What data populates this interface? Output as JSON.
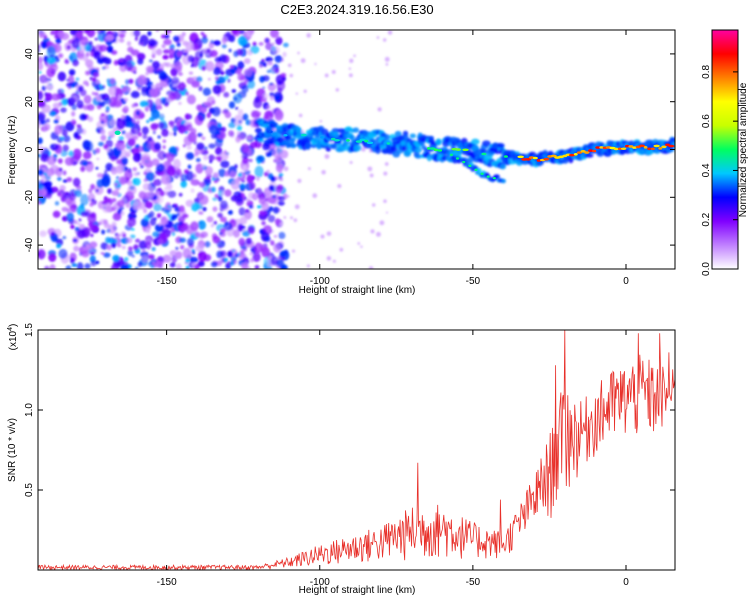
{
  "title": "C2E3.2024.319.16.56.E30",
  "chart_data": [
    {
      "type": "heatmap",
      "xlabel": "Height of straight line (km)",
      "ylabel": "Frequency (Hz)",
      "xlim": [
        -192,
        16
      ],
      "ylim": [
        -50,
        50
      ],
      "x_ticks": [
        -150,
        -100,
        -50,
        0
      ],
      "y_ticks": [
        -40,
        -20,
        0,
        20,
        40
      ],
      "noise_region_x": [
        -192,
        -117
      ],
      "ridge": [
        {
          "x": -120,
          "y": 8
        },
        {
          "x": -110,
          "y": 6
        },
        {
          "x": -100,
          "y": 5
        },
        {
          "x": -90,
          "y": 4
        },
        {
          "x": -80,
          "y": 3
        },
        {
          "x": -70,
          "y": 2
        },
        {
          "x": -60,
          "y": 0
        },
        {
          "x": -50,
          "y": -1
        },
        {
          "x": -40,
          "y": -3
        },
        {
          "x": -30,
          "y": -4
        },
        {
          "x": -20,
          "y": -3
        },
        {
          "x": -10,
          "y": 0
        },
        {
          "x": 0,
          "y": 1
        },
        {
          "x": 10,
          "y": 1
        },
        {
          "x": 16,
          "y": 2
        }
      ],
      "side_branch": [
        {
          "x": -60,
          "y": 0
        },
        {
          "x": -52,
          "y": -6
        },
        {
          "x": -46,
          "y": -11
        },
        {
          "x": -40,
          "y": -13
        }
      ],
      "colorbar": {
        "label": "Normalized spectral amplitude",
        "ticks": [
          0.0,
          0.2,
          0.4,
          0.6,
          0.8
        ],
        "range": [
          0,
          0.97
        ],
        "colors": [
          "#ffffff",
          "#c080ff",
          "#8000ff",
          "#0000ff",
          "#00c8ff",
          "#00ff60",
          "#c8ff00",
          "#ffff00",
          "#ff8000",
          "#ff0000",
          "#ff00a0"
        ]
      }
    },
    {
      "type": "line",
      "xlabel": "Height of straight line (km)",
      "ylabel": "SNR (10 * v/v)",
      "multiplier_label": "(x10",
      "multiplier_exp": "4",
      "multiplier_close": ")",
      "xlim": [
        -192,
        16
      ],
      "ylim": [
        0,
        1.5
      ],
      "x_ticks": [
        -150,
        -100,
        -50,
        0
      ],
      "y_ticks": [
        0.5,
        1.0,
        1.5
      ],
      "y_tick_labels": [
        "0.5",
        "1.0",
        "1.5"
      ],
      "color": "#e8302a",
      "envelope": [
        {
          "x": -192,
          "lo": 0.0,
          "hi": 0.03
        },
        {
          "x": -120,
          "lo": 0.0,
          "hi": 0.03
        },
        {
          "x": -110,
          "lo": 0.01,
          "hi": 0.08
        },
        {
          "x": -100,
          "lo": 0.02,
          "hi": 0.16
        },
        {
          "x": -90,
          "lo": 0.03,
          "hi": 0.22
        },
        {
          "x": -80,
          "lo": 0.04,
          "hi": 0.28
        },
        {
          "x": -70,
          "lo": 0.05,
          "hi": 0.4
        },
        {
          "x": -60,
          "lo": 0.06,
          "hi": 0.42
        },
        {
          "x": -50,
          "lo": 0.06,
          "hi": 0.3
        },
        {
          "x": -40,
          "lo": 0.06,
          "hi": 0.24
        },
        {
          "x": -35,
          "lo": 0.15,
          "hi": 0.4
        },
        {
          "x": -30,
          "lo": 0.25,
          "hi": 0.6
        },
        {
          "x": -25,
          "lo": 0.3,
          "hi": 0.85
        },
        {
          "x": -20,
          "lo": 0.4,
          "hi": 1.2
        },
        {
          "x": -15,
          "lo": 0.6,
          "hi": 1.05
        },
        {
          "x": -10,
          "lo": 0.7,
          "hi": 1.15
        },
        {
          "x": -5,
          "lo": 0.75,
          "hi": 1.25
        },
        {
          "x": 0,
          "lo": 0.8,
          "hi": 1.3
        },
        {
          "x": 5,
          "lo": 0.8,
          "hi": 1.35
        },
        {
          "x": 10,
          "lo": 0.8,
          "hi": 1.3
        },
        {
          "x": 16,
          "lo": 0.95,
          "hi": 1.25
        }
      ],
      "peaks": [
        {
          "x": -68,
          "y": 0.67
        },
        {
          "x": -41,
          "y": 0.44
        },
        {
          "x": -20,
          "y": 1.5
        },
        {
          "x": -23,
          "y": 1.28
        },
        {
          "x": 4,
          "y": 1.48
        },
        {
          "x": 11,
          "y": 1.48
        },
        {
          "x": 14,
          "y": 1.36
        },
        {
          "x": -5,
          "y": 1.22
        }
      ]
    }
  ]
}
